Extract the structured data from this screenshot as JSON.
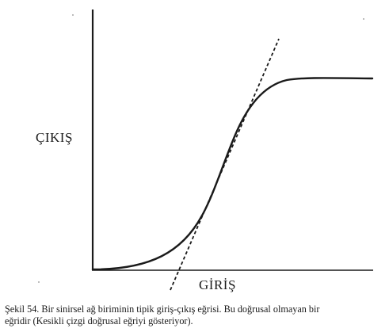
{
  "figure": {
    "ylabel": "ÇIKIŞ",
    "xlabel": "GİRİŞ",
    "caption_line1": "Şekil 54. Bir sinirsel ağ biriminin tipik giriş-çıkış eğrisi. Bu doğrusal olmayan bir",
    "caption_line2": "eğridir (Kesikli çizgi doğrusal eğriyi gösteriyor)."
  },
  "colors": {
    "ink": "#1a1a1a",
    "background": "#ffffff"
  },
  "curves": [
    {
      "kind": "sigmoid",
      "style": "solid"
    },
    {
      "kind": "tangent-line",
      "style": "dashed"
    }
  ]
}
